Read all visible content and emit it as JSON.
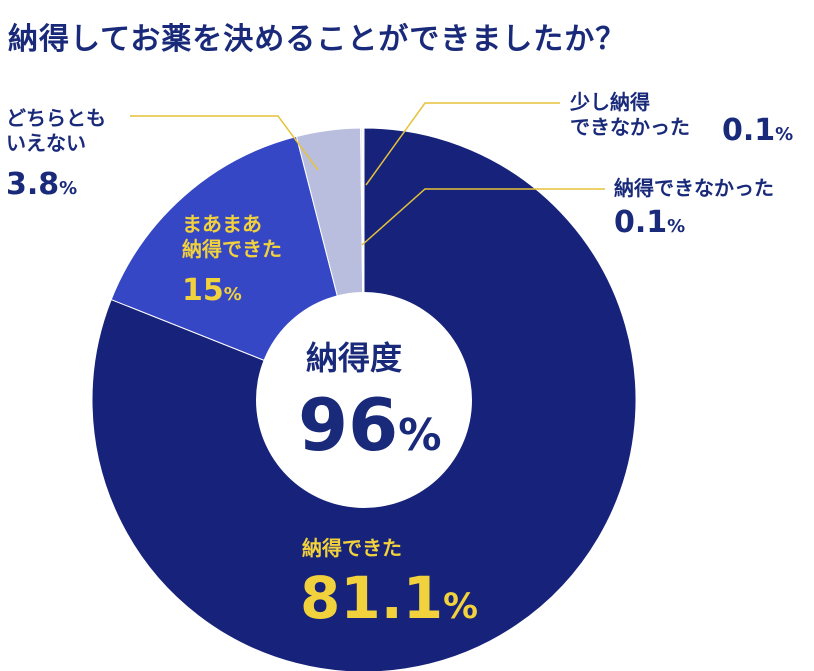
{
  "title": "納得してお薬を決めることができましたか？",
  "center": {
    "label": "納得度",
    "value": "96",
    "unit": "%"
  },
  "chart_data": {
    "type": "pie",
    "title": "納得してお薬を決めることができましたか？",
    "unit": "%",
    "slices": [
      {
        "label": "納得できた",
        "value": 81.1,
        "color": "#17237a"
      },
      {
        "label": "まあまあ納得できた",
        "value": 15,
        "color": "#3547c4"
      },
      {
        "label": "どちらともいえない",
        "value": 3.8,
        "color": "#b9bedf"
      },
      {
        "label": "少し納得できなかった",
        "value": 0.1,
        "color": "#e4e6f2"
      },
      {
        "label": "納得できなかった",
        "value": 0.1,
        "color": "#eef0f7"
      }
    ],
    "center_label": "納得度",
    "center_value": 96
  },
  "labels": {
    "s0": {
      "line1": "納得できた",
      "pct": "81.1"
    },
    "s1": {
      "line1": "まあまあ",
      "line2": "納得できた",
      "pct": "15"
    },
    "s2": {
      "line1": "どちらとも",
      "line2": "いえない",
      "pct": "3.8"
    },
    "s3": {
      "line1": "少し納得",
      "line2": "できなかった",
      "pct": "0.1"
    },
    "s4": {
      "line1": "納得できなかった",
      "pct": "0.1"
    },
    "unit": "%"
  },
  "colors": {
    "leader": "#e6c23a",
    "text_navy": "#1a2a7a",
    "text_yellow": "#f2d23c"
  }
}
